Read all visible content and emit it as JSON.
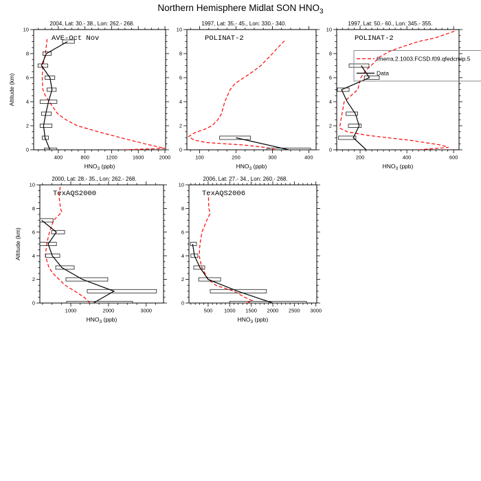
{
  "title": {
    "base": "Northern Hemisphere Midlat SON HNO",
    "sub": "3"
  },
  "ylabel": "Altitude (km)",
  "xlabel": {
    "base": "HNO",
    "sub": "3",
    "rest": " (ppb)"
  },
  "colors": {
    "model": "#ff0000",
    "data": "#000000",
    "legend_box": "#888888"
  },
  "legend": {
    "entries": [
      {
        "label": "fmerra.2.1003.FCSD.f09.qfedcmip.5",
        "color": "#ff0000",
        "style": "dashed"
      },
      {
        "label": "Data",
        "color": "#000000",
        "style": "solid"
      }
    ]
  },
  "chart_data": [
    {
      "type": "line",
      "title": "2004, Lat: 30.- 38., Lon: 262.- 268.",
      "inner_label": "AVE-Oct Nov",
      "xlabel": "HNO3 (ppb)",
      "ylabel": "Altitude (km)",
      "x_axis": {
        "min": 30,
        "max": 2010,
        "major_ticks": [
          400,
          800,
          1200,
          1600,
          2000
        ],
        "minor_step": 100
      },
      "y_axis": {
        "min": 0,
        "max": 10,
        "major_ticks": [
          0,
          2,
          4,
          6,
          8,
          10
        ],
        "minor_step": 0.5
      },
      "model_points_alt_ppb": [
        [
          0,
          1380
        ],
        [
          0.12,
          2000
        ],
        [
          0.5,
          1700
        ],
        [
          1,
          1340
        ],
        [
          1.5,
          1000
        ],
        [
          2,
          685
        ],
        [
          2.5,
          515
        ],
        [
          3,
          390
        ],
        [
          3.5,
          325
        ],
        [
          4,
          265
        ],
        [
          4.5,
          205
        ],
        [
          5,
          168
        ],
        [
          6,
          158
        ],
        [
          7,
          168
        ],
        [
          8,
          205
        ],
        [
          9.2,
          232
        ]
      ],
      "data_points_alt_ppb": [
        [
          0,
          274
        ],
        [
          1,
          200
        ],
        [
          2,
          179
        ],
        [
          3,
          211
        ],
        [
          4,
          253
        ],
        [
          5,
          305
        ],
        [
          6,
          274
        ],
        [
          7,
          147
        ],
        [
          8,
          221
        ],
        [
          9,
          537
        ]
      ],
      "data_boxes_alt_lo_hi": [
        [
          0,
          189,
          379
        ],
        [
          1,
          158,
          253
        ],
        [
          2,
          126,
          305
        ],
        [
          3,
          147,
          295
        ],
        [
          4,
          126,
          379
        ],
        [
          5,
          232,
          368
        ],
        [
          6,
          200,
          347
        ],
        [
          7,
          95,
          242
        ],
        [
          8,
          168,
          295
        ],
        [
          9,
          463,
          642
        ]
      ]
    },
    {
      "type": "line",
      "title": "1997, Lat: 35.- 45., Lon: 330.- 340.",
      "inner_label": "POLINAT-2",
      "xlabel": "HNO3 (ppb)",
      "ylabel": "",
      "x_axis": {
        "min": 65,
        "max": 420,
        "major_ticks": [
          100,
          200,
          300,
          400
        ],
        "minor_step": 25
      },
      "y_axis": {
        "min": 0,
        "max": 10,
        "major_ticks": [
          0,
          2,
          4,
          6,
          8,
          10
        ],
        "minor_step": 0.5
      },
      "model_points_alt_ppb": [
        [
          0,
          308
        ],
        [
          0.2,
          280
        ],
        [
          0.4,
          220
        ],
        [
          0.6,
          120
        ],
        [
          0.8,
          85
        ],
        [
          1.1,
          70
        ],
        [
          1.4,
          85
        ],
        [
          1.7,
          113
        ],
        [
          2,
          134
        ],
        [
          2.5,
          150
        ],
        [
          3,
          160
        ],
        [
          4,
          169
        ],
        [
          5,
          184
        ],
        [
          5.5,
          197
        ],
        [
          6,
          222
        ],
        [
          6.5,
          246
        ],
        [
          7,
          268
        ],
        [
          8,
          300
        ],
        [
          8.5,
          315
        ],
        [
          9.1,
          334
        ]
      ],
      "data_points_alt_ppb": [
        [
          0,
          345
        ],
        [
          1,
          200
        ]
      ],
      "data_boxes_alt_lo_hi": [
        [
          0,
          285,
          405
        ],
        [
          1,
          155,
          240
        ]
      ]
    },
    {
      "type": "line",
      "title": "1997, Lat: 50.- 60., Lon: 345.- 355.",
      "inner_label": "POLINAT-2",
      "xlabel": "HNO3 (ppb)",
      "ylabel": "",
      "x_axis": {
        "min": 100,
        "max": 623,
        "major_ticks": [
          200,
          400,
          600
        ],
        "minor_step": 25
      },
      "y_axis": {
        "min": 0,
        "max": 10,
        "major_ticks": [
          0,
          2,
          4,
          6,
          8,
          10
        ],
        "minor_step": 0.5
      },
      "model_points_alt_ppb": [
        [
          0,
          450
        ],
        [
          0.2,
          578
        ],
        [
          0.4,
          545
        ],
        [
          0.6,
          478
        ],
        [
          0.8,
          410
        ],
        [
          1,
          320
        ],
        [
          1.2,
          232
        ],
        [
          1.5,
          145
        ],
        [
          1.8,
          113
        ],
        [
          2,
          114
        ],
        [
          2.5,
          118
        ],
        [
          3,
          123
        ],
        [
          4,
          132
        ],
        [
          5,
          190
        ],
        [
          6,
          203
        ],
        [
          6.6,
          224
        ],
        [
          7,
          247
        ],
        [
          7.7,
          282
        ],
        [
          8.2,
          327
        ],
        [
          8.6,
          386
        ],
        [
          9,
          449
        ],
        [
          9.3,
          519
        ],
        [
          9.9,
          609
        ]
      ],
      "data_points_alt_ppb": [
        [
          0,
          226
        ],
        [
          1,
          171
        ],
        [
          2,
          196
        ],
        [
          3,
          180
        ],
        [
          4,
          145
        ],
        [
          5,
          121
        ],
        [
          6,
          240
        ],
        [
          7,
          205
        ]
      ],
      "data_boxes_alt_lo_hi": [
        [
          1,
          108,
          182
        ],
        [
          2,
          150,
          205
        ],
        [
          3,
          140,
          190
        ],
        [
          5,
          103,
          153
        ],
        [
          6,
          218,
          282
        ],
        [
          7,
          153,
          238
        ]
      ]
    },
    {
      "type": "line",
      "title": "2000, Lat: 28.- 35., Lon: 262.- 268.",
      "inner_label": "TexAQS2000",
      "xlabel": "HNO3 (ppb)",
      "ylabel": "Altitude (km)",
      "x_axis": {
        "min": 180,
        "max": 3460,
        "major_ticks": [
          1000,
          2000,
          3000
        ],
        "minor_step": 250
      },
      "y_axis": {
        "min": 0,
        "max": 10,
        "major_ticks": [
          0,
          2,
          4,
          6,
          8,
          10
        ],
        "minor_step": 0.5
      },
      "model_points_alt_ppb": [
        [
          0,
          1510
        ],
        [
          0.5,
          1350
        ],
        [
          1,
          1110
        ],
        [
          1.5,
          855
        ],
        [
          2,
          690
        ],
        [
          2.5,
          530
        ],
        [
          3,
          420
        ],
        [
          4,
          327
        ],
        [
          5,
          363
        ],
        [
          6,
          436
        ],
        [
          7,
          545
        ],
        [
          7.7,
          764
        ],
        [
          8,
          727
        ],
        [
          9,
          691
        ],
        [
          10,
          725
        ]
      ],
      "data_points_alt_ppb": [
        [
          0,
          1600
        ],
        [
          1,
          2146
        ],
        [
          2,
          1309
        ],
        [
          3,
          764
        ],
        [
          4,
          509
        ],
        [
          5,
          400
        ],
        [
          6,
          618
        ],
        [
          7,
          230
        ]
      ],
      "data_boxes_alt_lo_hi": [
        [
          0,
          891,
          2638
        ],
        [
          1,
          1437,
          3274
        ],
        [
          2,
          873,
          1982
        ],
        [
          3,
          600,
          1091
        ],
        [
          4,
          327,
          709
        ],
        [
          5,
          182,
          620
        ],
        [
          6,
          491,
          836
        ],
        [
          7,
          180,
          530
        ]
      ]
    },
    {
      "type": "line",
      "title": "2006, Lat: 27.- 34., Lon: 260.- 268.",
      "inner_label": "TexAQS2006",
      "xlabel": "HNO3 (ppb)",
      "ylabel": "",
      "x_axis": {
        "min": 55,
        "max": 3020,
        "major_ticks": [
          500,
          1000,
          1500,
          2000,
          2500,
          3000
        ],
        "minor_step": 100
      },
      "y_axis": {
        "min": 0,
        "max": 10,
        "major_ticks": [
          0,
          2,
          4,
          6,
          8,
          10
        ],
        "minor_step": 0.5
      },
      "model_points_alt_ppb": [
        [
          0,
          1400
        ],
        [
          0.2,
          1520
        ],
        [
          0.5,
          1340
        ],
        [
          1,
          1100
        ],
        [
          1.5,
          680
        ],
        [
          2,
          500
        ],
        [
          3,
          355
        ],
        [
          4,
          293
        ],
        [
          5,
          310
        ],
        [
          6,
          357
        ],
        [
          7,
          468
        ],
        [
          7.6,
          548
        ],
        [
          8,
          516
        ],
        [
          9.2,
          505
        ]
      ],
      "data_points_alt_ppb": [
        [
          0,
          2000
        ],
        [
          1,
          1185
        ],
        [
          2,
          500
        ],
        [
          3,
          310
        ],
        [
          4,
          182
        ],
        [
          5,
          140
        ]
      ],
      "data_boxes_alt_lo_hi": [
        [
          0,
          1000,
          2780
        ],
        [
          1,
          548,
          1853
        ],
        [
          2,
          280,
          790
        ],
        [
          3,
          166,
          420
        ],
        [
          4,
          100,
          260
        ],
        [
          5,
          90,
          230
        ]
      ]
    }
  ]
}
